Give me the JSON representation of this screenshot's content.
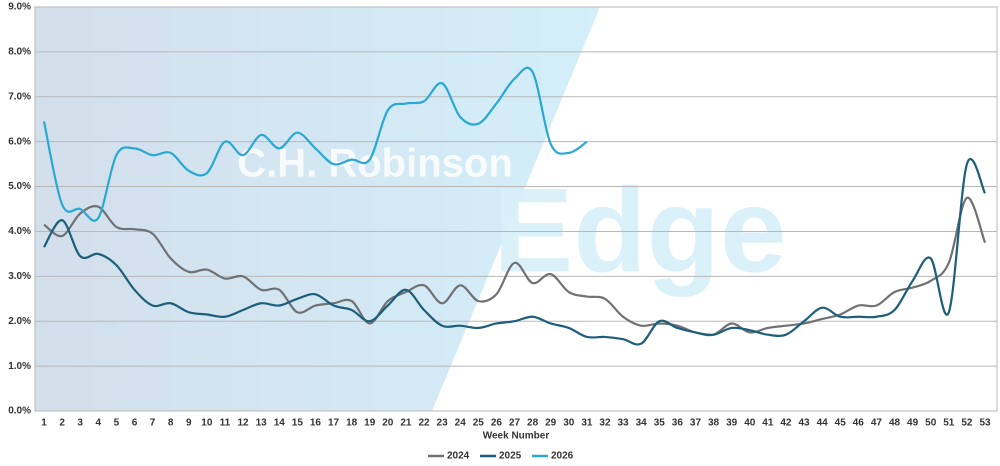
{
  "chart_data": {
    "type": "line",
    "watermark": [
      "C.H. Robinson",
      "Edge"
    ],
    "x_label": "Week Number",
    "categories": [
      1,
      2,
      3,
      4,
      5,
      6,
      7,
      8,
      9,
      10,
      11,
      12,
      13,
      14,
      15,
      16,
      17,
      18,
      19,
      20,
      21,
      22,
      23,
      24,
      25,
      26,
      27,
      28,
      29,
      30,
      31,
      32,
      33,
      34,
      35,
      36,
      37,
      38,
      39,
      40,
      41,
      42,
      43,
      44,
      45,
      46,
      47,
      48,
      49,
      50,
      51,
      52,
      53
    ],
    "ylim": [
      0,
      9
    ],
    "yticks": [
      {
        "value": 0,
        "label": "0.0%"
      },
      {
        "value": 1,
        "label": "1.0%"
      },
      {
        "value": 2,
        "label": "2.0%"
      },
      {
        "value": 3,
        "label": "3.0%"
      },
      {
        "value": 4,
        "label": "4.0%"
      },
      {
        "value": 5,
        "label": "5.0%"
      },
      {
        "value": 6,
        "label": "6.0%"
      },
      {
        "value": 7,
        "label": "7.0%"
      },
      {
        "value": 8,
        "label": "8.0%"
      },
      {
        "value": 9,
        "label": "9.0%"
      }
    ],
    "grid": true,
    "legend": "bottom",
    "series": [
      {
        "name": "2024",
        "color": "#707174",
        "values": [
          4.15,
          3.9,
          4.4,
          4.55,
          4.1,
          4.05,
          3.95,
          3.4,
          3.1,
          3.15,
          2.95,
          3.0,
          2.7,
          2.7,
          2.2,
          2.35,
          2.4,
          2.45,
          1.95,
          2.45,
          2.65,
          2.8,
          2.4,
          2.8,
          2.45,
          2.6,
          3.3,
          2.85,
          3.05,
          2.65,
          2.55,
          2.5,
          2.1,
          1.9,
          1.95,
          1.9,
          1.75,
          1.7,
          1.95,
          1.75,
          1.85,
          1.9,
          1.95,
          2.05,
          2.15,
          2.35,
          2.35,
          2.65,
          2.75,
          2.9,
          3.3,
          4.75,
          3.75
        ]
      },
      {
        "name": "2025",
        "color": "#1d5f7b",
        "values": [
          3.65,
          4.25,
          3.45,
          3.5,
          3.25,
          2.7,
          2.35,
          2.4,
          2.2,
          2.15,
          2.1,
          2.25,
          2.4,
          2.35,
          2.5,
          2.6,
          2.35,
          2.25,
          2.0,
          2.35,
          2.7,
          2.25,
          1.9,
          1.9,
          1.85,
          1.95,
          2.0,
          2.1,
          1.95,
          1.85,
          1.65,
          1.65,
          1.6,
          1.5,
          2.0,
          1.85,
          1.75,
          1.7,
          1.85,
          1.8,
          1.7,
          1.7,
          2.0,
          2.3,
          2.1,
          2.1,
          2.1,
          2.25,
          2.9,
          3.4,
          2.2,
          5.5,
          4.85
        ]
      },
      {
        "name": "2026",
        "color": "#2aa8d4",
        "values": [
          6.45,
          4.6,
          4.5,
          4.3,
          5.7,
          5.85,
          5.7,
          5.75,
          5.35,
          5.3,
          6.0,
          5.7,
          6.15,
          5.85,
          6.2,
          5.85,
          5.5,
          5.6,
          5.6,
          6.7,
          6.85,
          6.9,
          7.3,
          6.55,
          6.4,
          6.85,
          7.4,
          7.55,
          5.95,
          5.75,
          6.0,
          null,
          null,
          null,
          null,
          null,
          null,
          null,
          null,
          null,
          null,
          null,
          null,
          null,
          null,
          null,
          null,
          null,
          null,
          null,
          null,
          null,
          null
        ]
      }
    ]
  }
}
